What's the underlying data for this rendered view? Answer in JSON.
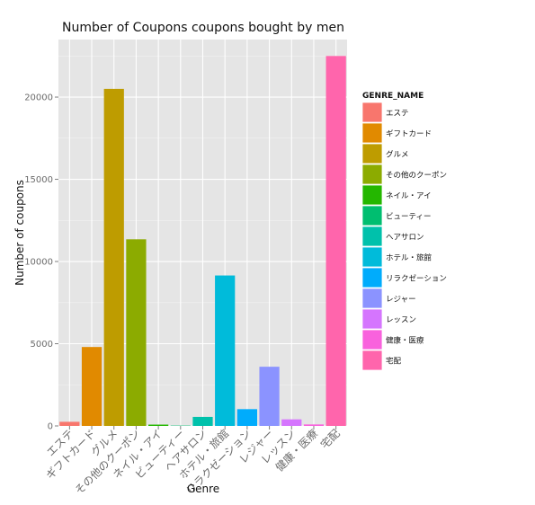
{
  "chart_data": {
    "type": "bar",
    "title": "Number of Coupons coupons bought by men",
    "xlabel": "Genre",
    "ylabel": "Number of coupons",
    "ylim": [
      0,
      23500
    ],
    "yticks": [
      0,
      5000,
      10000,
      15000,
      20000
    ],
    "grid": true,
    "legend": {
      "title": "GENRE_NAME",
      "placement": "right"
    },
    "categories": [
      "エステ",
      "ギフトカード",
      "グルメ",
      "その他のクーポン",
      "ネイル・アイ",
      "ビューティー",
      "ヘアサロン",
      "ホテル・旅館",
      "リラクゼーション",
      "レジャー",
      "レッスン",
      "健康・医療",
      "宅配"
    ],
    "values": [
      250,
      4800,
      20500,
      11350,
      80,
      20,
      550,
      9150,
      1020,
      3600,
      400,
      90,
      22500
    ],
    "colors": [
      "#F8766D",
      "#E18A00",
      "#BE9C00",
      "#8CAB00",
      "#24B700",
      "#00BE70",
      "#00C1AB",
      "#00BBDA",
      "#00ACFC",
      "#8B93FF",
      "#D575FE",
      "#F962DD",
      "#FF65AC"
    ]
  }
}
